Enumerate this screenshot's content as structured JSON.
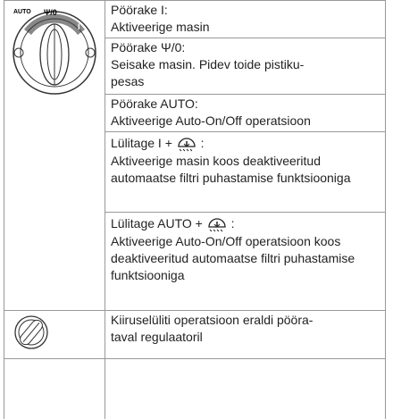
{
  "knob": {
    "labels": [
      "AUTO",
      "Ψ/0",
      "I"
    ]
  },
  "rows": [
    {
      "lines": [
        "Pöörake I:",
        "Aktiveerige masin"
      ]
    },
    {
      "lines": [
        "Pöörake Ψ/0:",
        "Seisake masin. Pidev toide pistiku-",
        "pesas"
      ]
    },
    {
      "lines": [
        "Pöörake AUTO:",
        "Aktiveerige Auto-On/Off operatsioon"
      ]
    },
    {
      "heading": [
        "Lülitage I +",
        ":"
      ],
      "lines": [
        "Aktiveerige masin koos deaktiveeritud automaatse filtri puhastamise funktsiooniga"
      ]
    },
    {
      "heading": [
        "Lülitage AUTO +",
        ":"
      ],
      "lines": [
        "Aktiveerige Auto-On/Off operatsioon koos deaktiveeritud automaatse filtri puhastamise funktsiooniga"
      ]
    },
    {
      "lines": [
        "Kiiruselüliti operatsioon eraldi pööra-",
        "taval regulaatoril"
      ]
    }
  ]
}
